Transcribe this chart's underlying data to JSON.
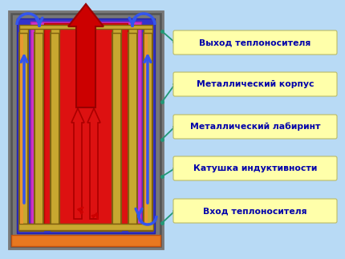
{
  "bg_color": "#b8daf5",
  "labels": [
    "Выход теплоносителя",
    "Металлический корпус",
    "Металлический лабиринт",
    "Катушка индуктивности",
    "Вход теплоносителя"
  ],
  "label_box_color": "#ffffaa",
  "label_text_color": "#0000aa",
  "connector_color": "#229977",
  "outer_shell_fc": "#888888",
  "outer_shell_ec": "#666666",
  "inner_blue_fc": "#3333cc",
  "purple_fc": "#cc33cc",
  "red_fc": "#dd1111",
  "tube_fc": "#c8a830",
  "tube_ec": "#806010",
  "orange_fc": "#e87820",
  "blue_arrow_color": "#3355ee"
}
